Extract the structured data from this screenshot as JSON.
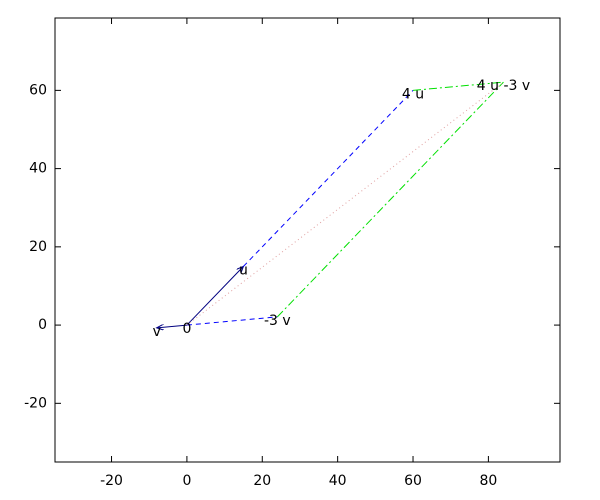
{
  "chart_data": {
    "type": "vector",
    "segments": [
      {
        "x": [
          0,
          15
        ],
        "y": [
          0,
          15
        ],
        "color": "#000080",
        "style": "arrow"
      },
      {
        "x": [
          0,
          -8
        ],
        "y": [
          0,
          -0.7
        ],
        "color": "#000080",
        "style": "arrow"
      },
      {
        "x": [
          15,
          60
        ],
        "y": [
          15,
          60
        ],
        "color": "#0000ff",
        "style": "dashed"
      },
      {
        "x": [
          0,
          24
        ],
        "y": [
          0,
          2.1
        ],
        "color": "#0000ff",
        "style": "dashed"
      },
      {
        "x": [
          24,
          84
        ],
        "y": [
          2.1,
          62.1
        ],
        "color": "#00e000",
        "style": "dashdot"
      },
      {
        "x": [
          60,
          84
        ],
        "y": [
          60,
          62.1
        ],
        "color": "#00e000",
        "style": "dashdot"
      },
      {
        "x": [
          0,
          84
        ],
        "y": [
          0,
          62.1
        ],
        "color": "#e0a0a0",
        "style": "dotted"
      }
    ],
    "labels": [
      {
        "text": "0",
        "x": 0,
        "y": 0
      },
      {
        "text": "u",
        "x": 15,
        "y": 15
      },
      {
        "text": "v",
        "x": -8,
        "y": -0.7
      },
      {
        "text": "4 u",
        "x": 60,
        "y": 60
      },
      {
        "text": "-3 v",
        "x": 24,
        "y": 2.1
      },
      {
        "text": "4 u -3 v",
        "x": 84,
        "y": 62.1
      }
    ],
    "xlim": [
      -35,
      99
    ],
    "ylim": [
      -35,
      78.5
    ],
    "xticks": [
      -20,
      0,
      20,
      40,
      60,
      80
    ],
    "yticks": [
      -20,
      0,
      20,
      40,
      60
    ]
  }
}
